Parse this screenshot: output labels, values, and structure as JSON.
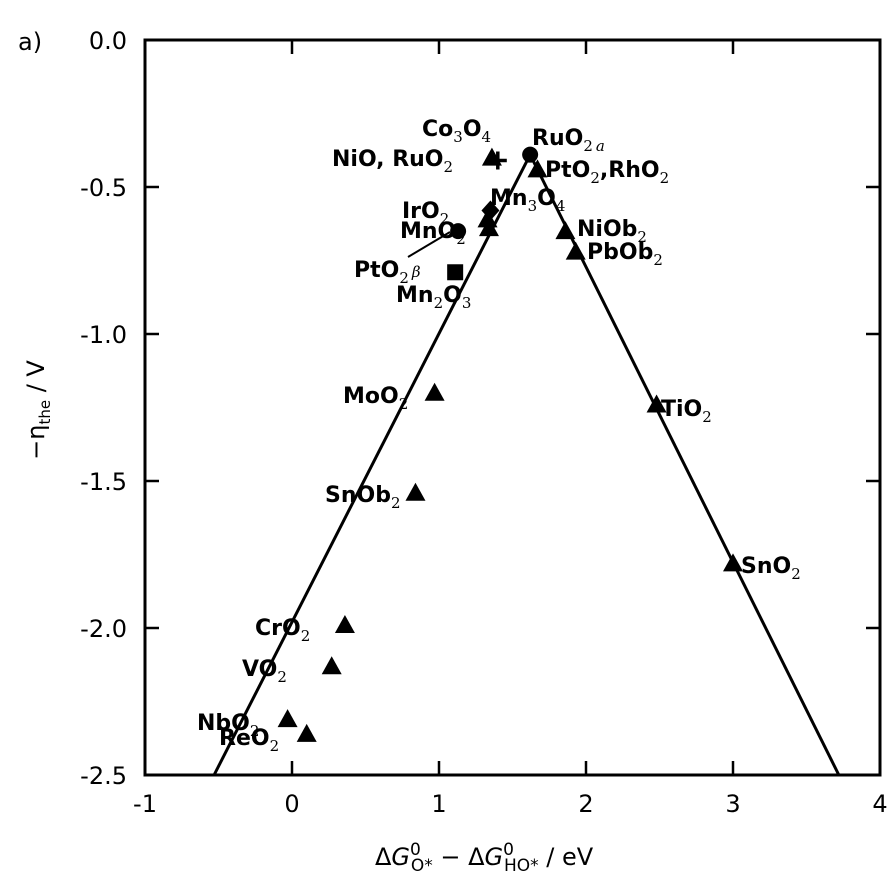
{
  "panel_label": "a)",
  "chart_data": {
    "type": "scatter",
    "xlabel": "ΔG⁰O* − ΔG⁰HO* / eV",
    "ylabel": "−ηthe / V",
    "xlim": [
      -1,
      4
    ],
    "ylim": [
      -2.5,
      0.0
    ],
    "x_ticks": [
      "-1",
      "0",
      "1",
      "2",
      "3",
      "4"
    ],
    "y_ticks": [
      "0.0",
      "-0.5",
      "-1.0",
      "-1.5",
      "-2.0",
      "-2.5"
    ],
    "grid": false,
    "legend": "none",
    "volcano_lines": [
      {
        "x": [
          -0.53,
          1.62
        ],
        "y": [
          -2.5,
          -0.39
        ]
      },
      {
        "x": [
          1.62,
          3.72
        ],
        "y": [
          -0.39,
          -2.5
        ]
      }
    ],
    "points": [
      {
        "label": "RuO2 a",
        "x": 1.62,
        "y": -0.39,
        "marker": "circle"
      },
      {
        "label": "Co3O4",
        "x": 1.36,
        "y": -0.4,
        "marker": "triangle"
      },
      {
        "label": "NiO, RuO2",
        "x": 1.4,
        "y": -0.41,
        "marker": "plus"
      },
      {
        "label": "PtO2, RhO2",
        "x": 1.67,
        "y": -0.44,
        "marker": "triangle"
      },
      {
        "label": "Mn3O4",
        "x": 1.35,
        "y": -0.58,
        "marker": "diamond"
      },
      {
        "label": "IrO2",
        "x": 1.33,
        "y": -0.61,
        "marker": "triangle"
      },
      {
        "label": "MnO2",
        "x": 1.34,
        "y": -0.64,
        "marker": "triangle"
      },
      {
        "label": "MnO2 circle",
        "x": 1.13,
        "y": -0.65,
        "marker": "circle"
      },
      {
        "label": "NiOb2",
        "x": 1.86,
        "y": -0.65,
        "marker": "triangle"
      },
      {
        "label": "PbOb2",
        "x": 1.93,
        "y": -0.72,
        "marker": "triangle"
      },
      {
        "label": "PtO2 β",
        "x": 1.11,
        "y": -0.79,
        "marker": "square"
      },
      {
        "label": "MoO2",
        "x": 0.97,
        "y": -1.2,
        "marker": "triangle"
      },
      {
        "label": "TiO2",
        "x": 2.48,
        "y": -1.24,
        "marker": "triangle"
      },
      {
        "label": "SnOb2",
        "x": 0.84,
        "y": -1.54,
        "marker": "triangle"
      },
      {
        "label": "SnO2",
        "x": 3.0,
        "y": -1.78,
        "marker": "triangle"
      },
      {
        "label": "CrO2",
        "x": 0.36,
        "y": -1.99,
        "marker": "triangle"
      },
      {
        "label": "VO2",
        "x": 0.27,
        "y": -2.13,
        "marker": "triangle"
      },
      {
        "label": "NbO2",
        "x": -0.03,
        "y": -2.31,
        "marker": "triangle"
      },
      {
        "label": "ReO2",
        "x": 0.1,
        "y": -2.36,
        "marker": "triangle"
      }
    ],
    "annotations": {
      "co3o4": {
        "main": "Co",
        "s1": "3",
        "mid": "O",
        "s2": "4"
      },
      "ruo2a": {
        "main": "RuO",
        "s1": "2",
        "s2": "a"
      },
      "nio_ruo2": {
        "main": "NiO, RuO",
        "s1": "2"
      },
      "pto2_rho2": {
        "main": "PtO",
        "s1": "2",
        "mid": ",RhO",
        "s2": "2"
      },
      "iro2": {
        "main": "IrO",
        "s1": "2"
      },
      "mn3o4": {
        "main": "Mn",
        "s1": "3",
        "mid": "O",
        "s2": "4"
      },
      "mno2": {
        "main": "MnO",
        "s1": "2"
      },
      "niob2": {
        "main": "NiOb",
        "s1": "2"
      },
      "pbob2": {
        "main": "PbOb",
        "s1": "2"
      },
      "pto2b": {
        "main": "PtO",
        "s1": "2",
        "s2": "β"
      },
      "mn2o3": {
        "main": "Mn",
        "s1": "2",
        "mid": "O",
        "s2": "3"
      },
      "moo2": {
        "main": "MoO",
        "s1": "2"
      },
      "tio2": {
        "main": "TiO",
        "s1": "2"
      },
      "snob2": {
        "main": "SnOb",
        "s1": "2"
      },
      "sno2": {
        "main": "SnO",
        "s1": "2"
      },
      "cro2": {
        "main": "CrO",
        "s1": "2"
      },
      "vo2": {
        "main": "VO",
        "s1": "2"
      },
      "nbo2": {
        "main": "NbO",
        "s1": "2"
      },
      "reo2": {
        "main": "ReO",
        "s1": "2"
      }
    }
  }
}
